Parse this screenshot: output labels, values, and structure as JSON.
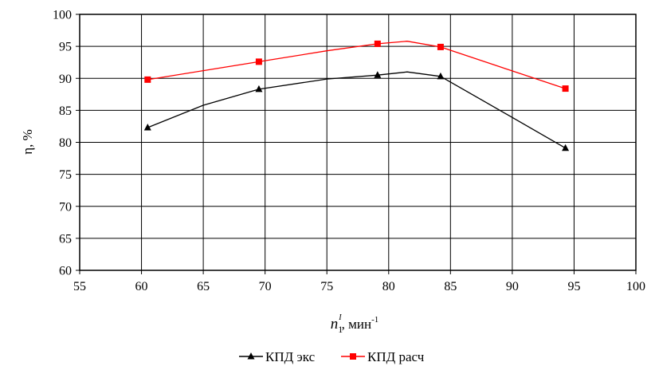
{
  "chart_data": {
    "type": "line",
    "title": "",
    "xlabel": {
      "main": "n",
      "subscript": "1",
      "superscript": "I",
      "unit": ", мин",
      "unit_superscript": "-1"
    },
    "ylabel": "η, %",
    "xlim": [
      55,
      100
    ],
    "ylim": [
      60,
      100
    ],
    "xticks": [
      55,
      60,
      65,
      70,
      75,
      80,
      85,
      90,
      95,
      100
    ],
    "yticks": [
      60,
      65,
      70,
      75,
      80,
      85,
      90,
      95,
      100
    ],
    "grid": true,
    "legend_position": "bottom",
    "series": [
      {
        "name": "КПД экс",
        "color": "#000000",
        "marker": "triangle",
        "x": [
          60.5,
          69.5,
          79.1,
          84.2,
          94.3
        ],
        "y": [
          82.3,
          88.3,
          90.5,
          90.3,
          79.1
        ],
        "curve_x": [
          60.5,
          65,
          69.5,
          75,
          79.1,
          81.5,
          84.2,
          89,
          94.3
        ],
        "curve_y": [
          82.3,
          85.8,
          88.3,
          89.9,
          90.5,
          91.0,
          90.3,
          85.0,
          79.1
        ]
      },
      {
        "name": "КПД расч",
        "color": "#ff0000",
        "marker": "square",
        "x": [
          60.5,
          69.5,
          79.1,
          84.2,
          94.3
        ],
        "y": [
          89.8,
          92.6,
          95.4,
          94.9,
          88.4
        ],
        "curve_x": [
          60.5,
          65,
          69.5,
          75,
          79.1,
          81.5,
          84.2,
          89,
          94.3
        ],
        "curve_y": [
          89.8,
          91.2,
          92.6,
          94.3,
          95.4,
          95.8,
          94.9,
          91.8,
          88.4
        ]
      }
    ]
  }
}
